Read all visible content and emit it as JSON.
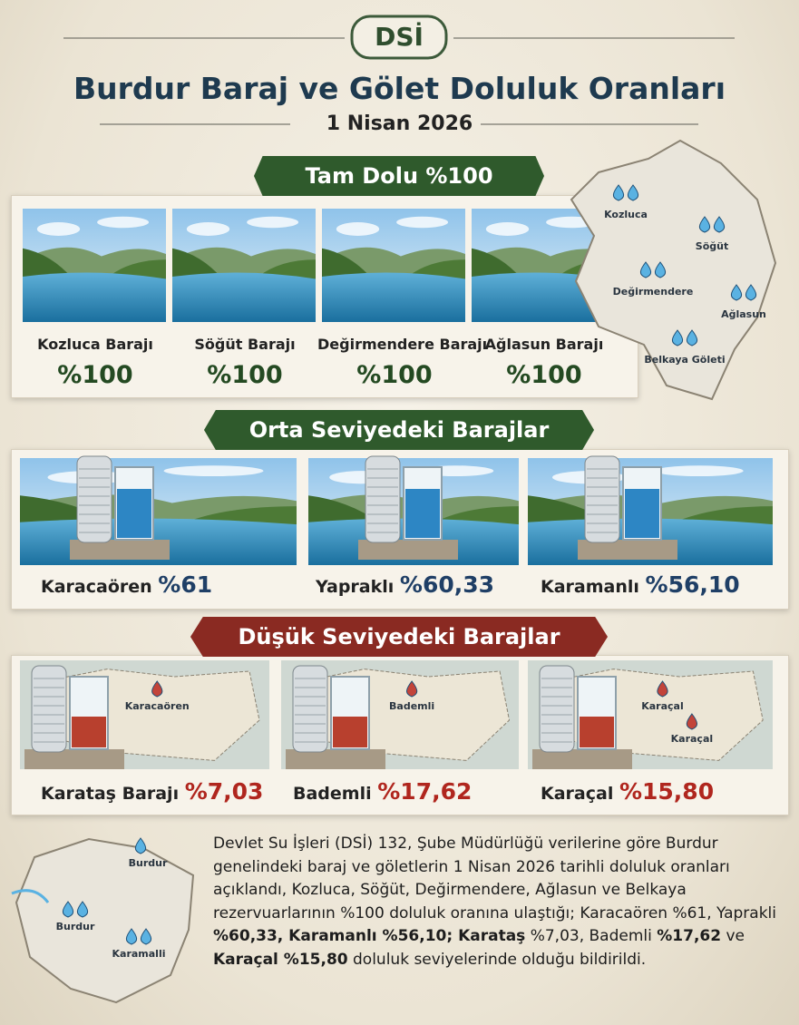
{
  "header": {
    "logo": "DSİ",
    "title": "Burdur Baraj ve Gölet Doluluk Oranları",
    "date": "1 Nisan 2026"
  },
  "sections": [
    {
      "title": "Tam Dolu %100",
      "color": "#2f5a2c",
      "value_color": "#244a22",
      "water": "#2d86c4",
      "items": [
        {
          "name": "Kozluca Barajı",
          "value": "%100"
        },
        {
          "name": "Söğüt Barajı",
          "value": "%100"
        },
        {
          "name": "Değirmendere Barajı",
          "value": "%100"
        },
        {
          "name": "Ağlasun Barajı",
          "value": "%100"
        }
      ]
    },
    {
      "title": "Orta Seviyedeki Barajlar",
      "color": "#2f5a2c",
      "value_color": "#1f3f66",
      "water": "#2d86c4",
      "items": [
        {
          "name": "Karacaören",
          "value": "%61"
        },
        {
          "name": "Yapraklı",
          "value": "%60,33"
        },
        {
          "name": "Karamanlı",
          "value": "%56,10"
        }
      ]
    },
    {
      "title": "Düşük Seviyedeki Barajlar",
      "color": "#8a2a22",
      "value_color": "#b0261e",
      "water": "#b8402e",
      "items": [
        {
          "name": "Karataş Barajı",
          "value": "%7,03",
          "map_labels": [
            "Karacaören"
          ]
        },
        {
          "name": "Bademli",
          "value": "%17,62",
          "map_labels": [
            "Bademli"
          ]
        },
        {
          "name": "Karaçal",
          "value": "%15,80",
          "map_labels": [
            "Karaçal",
            "Karaçal"
          ]
        }
      ]
    }
  ],
  "region_map": {
    "labels": [
      "Kozluca",
      "Söğüt",
      "Değirmendere",
      "Ağlasun",
      "Belkaya Göleti"
    ]
  },
  "bottom_map": {
    "labels": [
      "Burdur",
      "Burdur",
      "Karamalli"
    ]
  },
  "paragraph": [
    {
      "text": "Devlet Su İşleri (DSİ) 132, Şube Müdürlüğü verilerine göre Burdur genelindeki baraj ve göletlerin 1 Nisan 2026 tarihli doluluk oranları açıklandı, Kozluca, Söğüt, Değirmendere, Ağlasun ve Belkaya rezervuarlarının %100 doluluk oranına ulaştığı; Karacaören %61, Yaprakli ",
      "bold": false
    },
    {
      "text": "%60,33, Karamanlı %56,10; Karataş",
      "bold": true
    },
    {
      "text": " %7,03, Bademli ",
      "bold": false
    },
    {
      "text": "%17,62",
      "bold": true
    },
    {
      "text": " ve ",
      "bold": false
    },
    {
      "text": "Karaçal %15,80",
      "bold": true
    },
    {
      "text": " doluluk seviyelerinde olduğu bildirildi.",
      "bold": false
    }
  ]
}
